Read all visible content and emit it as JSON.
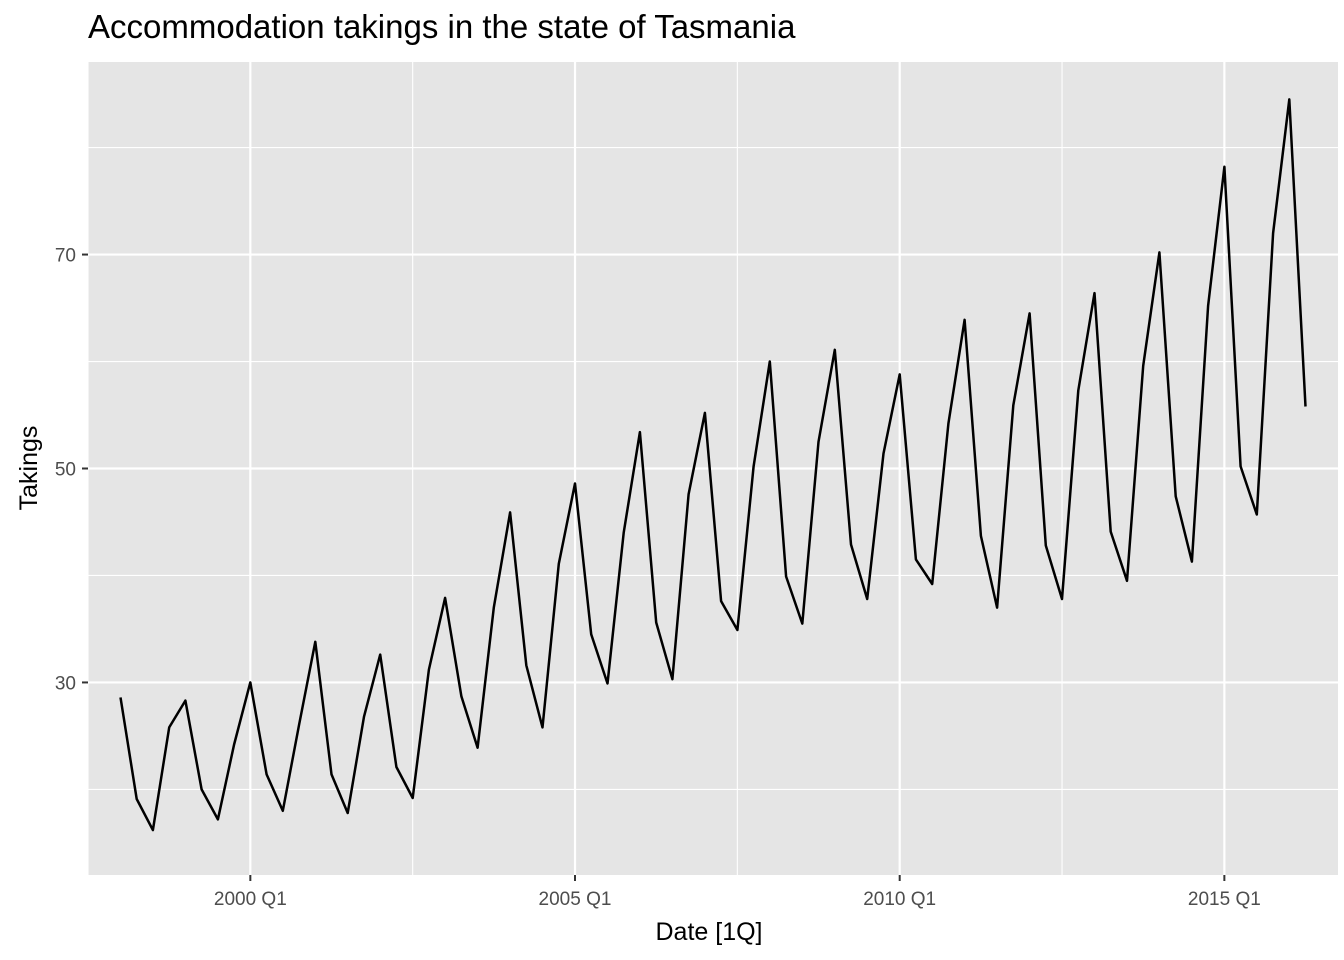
{
  "chart_data": {
    "type": "line",
    "title": "Accommodation takings in the state of Tasmania",
    "xlabel": "Date [1Q]",
    "ylabel": "Takings",
    "x_ticks": [
      "2000 Q1",
      "2005 Q1",
      "2010 Q1",
      "2015 Q1"
    ],
    "y_ticks": [
      30,
      50,
      70
    ],
    "y_range": [
      12,
      88
    ],
    "x_range": [
      "1997 Q3",
      "2016 Q4"
    ],
    "grid": true,
    "legend": "none",
    "colors": {
      "panel": "#e5e5e5",
      "grid": "#ffffff",
      "line": "#000000",
      "tick_text": "#4d4d4d"
    },
    "series": [
      {
        "x": [
          "1998 Q1",
          "1998 Q2",
          "1998 Q3",
          "1998 Q4",
          "1999 Q1",
          "1999 Q2",
          "1999 Q3",
          "1999 Q4",
          "2000 Q1",
          "2000 Q2",
          "2000 Q3",
          "2000 Q4",
          "2001 Q1",
          "2001 Q2",
          "2001 Q3",
          "2001 Q4",
          "2002 Q1",
          "2002 Q2",
          "2002 Q3",
          "2002 Q4",
          "2003 Q1",
          "2003 Q2",
          "2003 Q3",
          "2003 Q4",
          "2004 Q1",
          "2004 Q2",
          "2004 Q3",
          "2004 Q4",
          "2005 Q1",
          "2005 Q2",
          "2005 Q3",
          "2005 Q4",
          "2006 Q1",
          "2006 Q2",
          "2006 Q3",
          "2006 Q4",
          "2007 Q1",
          "2007 Q2",
          "2007 Q3",
          "2007 Q4",
          "2008 Q1",
          "2008 Q2",
          "2008 Q3",
          "2008 Q4",
          "2009 Q1",
          "2009 Q2",
          "2009 Q3",
          "2009 Q4",
          "2010 Q1",
          "2010 Q2",
          "2010 Q3",
          "2010 Q4",
          "2011 Q1",
          "2011 Q2",
          "2011 Q3",
          "2011 Q4",
          "2012 Q1",
          "2012 Q2",
          "2012 Q3",
          "2012 Q4",
          "2013 Q1",
          "2013 Q2",
          "2013 Q3",
          "2013 Q4",
          "2014 Q1",
          "2014 Q2",
          "2014 Q3",
          "2014 Q4",
          "2015 Q1",
          "2015 Q2",
          "2015 Q3",
          "2015 Q4",
          "2016 Q1",
          "2016 Q2"
        ],
        "values": [
          28.6,
          19.1,
          16.2,
          25.8,
          28.3,
          20.0,
          17.2,
          24.2,
          30.0,
          21.4,
          18.0,
          26.0,
          33.8,
          21.4,
          17.8,
          26.8,
          32.6,
          22.1,
          19.2,
          31.2,
          37.9,
          28.7,
          23.9,
          37.0,
          45.9,
          31.6,
          25.8,
          41.1,
          48.6,
          34.5,
          29.9,
          44.0,
          53.4,
          35.6,
          30.3,
          47.6,
          55.2,
          37.6,
          34.9,
          50.2,
          60.0,
          39.9,
          35.5,
          52.5,
          61.1,
          42.9,
          37.8,
          51.4,
          58.8,
          41.5,
          39.2,
          54.2,
          63.9,
          43.7,
          37.0,
          55.9,
          64.5,
          42.8,
          37.8,
          57.3,
          66.4,
          44.1,
          39.5,
          59.6,
          70.2,
          47.4,
          41.3,
          65.2,
          78.2,
          50.2,
          45.7,
          72.0,
          84.5,
          55.8
        ]
      }
    ]
  }
}
